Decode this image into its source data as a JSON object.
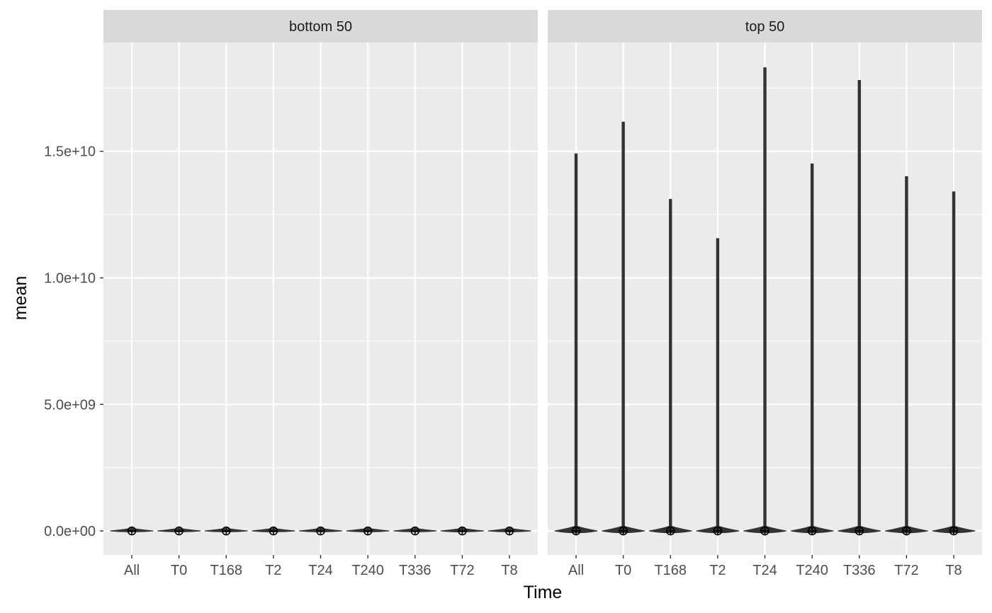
{
  "chart_data": {
    "type": "violin",
    "xlabel": "Time",
    "ylabel": "mean",
    "categories": [
      "All",
      "T0",
      "T168",
      "T2",
      "T24",
      "T240",
      "T336",
      "T72",
      "T8"
    ],
    "y_ticks": [
      0,
      5000000000,
      10000000000,
      15000000000
    ],
    "y_tick_labels": [
      "0.0e+00",
      "5.0e+09",
      "1.0e+10",
      "1.5e+10"
    ],
    "ylim": [
      -950000000,
      19300000000
    ],
    "grid": true,
    "legend": "none",
    "panels": [
      {
        "label": "bottom 50",
        "max": [
          0,
          0,
          0,
          0,
          0,
          0,
          0,
          0,
          0
        ],
        "mean_marker": [
          0,
          0,
          0,
          0,
          0,
          0,
          0,
          0,
          0
        ]
      },
      {
        "label": "top 50",
        "max": [
          14900000000,
          16150000000,
          13100000000,
          11550000000,
          18300000000,
          14500000000,
          17800000000,
          14000000000,
          13400000000
        ],
        "mean_marker": [
          0,
          0,
          0,
          0,
          0,
          0,
          0,
          0,
          0
        ]
      }
    ],
    "colors": {
      "panel_bg": "#ebebeb",
      "strip_bg": "#d9d9d9",
      "grid": "#ffffff",
      "violin": "#333333"
    }
  }
}
